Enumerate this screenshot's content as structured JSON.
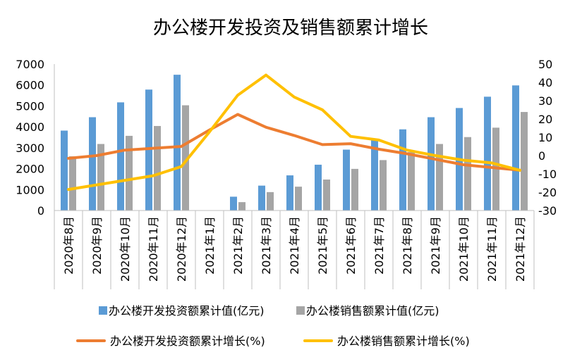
{
  "chart_data": {
    "type": "bar",
    "title": "办公楼开发投资及销售额累计增长",
    "categories": [
      "2020年8月",
      "2020年9月",
      "2020年10月",
      "2020年11月",
      "2020年12月",
      "2021年1月",
      "2021年2月",
      "2021年3月",
      "2021年4月",
      "2021年5月",
      "2021年6月",
      "2021年7月",
      "2021年8月",
      "2021年9月",
      "2021年10月",
      "2021年11月",
      "2021年12月"
    ],
    "left_axis": {
      "ylim": [
        0,
        7000
      ],
      "ticks": [
        0,
        1000,
        2000,
        3000,
        4000,
        5000,
        6000,
        7000
      ]
    },
    "right_axis": {
      "ylim": [
        -30,
        50
      ],
      "ticks": [
        -30,
        -20,
        -10,
        0,
        10,
        20,
        30,
        40,
        50
      ]
    },
    "grid": false,
    "legend_position": "bottom",
    "series": [
      {
        "name": "办公楼开发投资额累计值(亿元)",
        "type": "bar",
        "axis": "left",
        "color": "#5B9BD5",
        "values": [
          3820,
          4460,
          5170,
          5780,
          6490,
          null,
          660,
          1190,
          1680,
          2190,
          2910,
          3380,
          3880,
          4460,
          4900,
          5440,
          5980
        ]
      },
      {
        "name": "办公楼销售额累计值(亿元)",
        "type": "bar",
        "axis": "left",
        "color": "#A5A5A5",
        "values": [
          2590,
          3180,
          3570,
          4040,
          5030,
          null,
          400,
          880,
          1140,
          1480,
          1990,
          2410,
          2790,
          3180,
          3510,
          3960,
          4710
        ]
      },
      {
        "name": "办公楼开发投资额累计增长(%)",
        "type": "line",
        "axis": "right",
        "color": "#ED7D31",
        "values": [
          -1.5,
          0,
          3,
          4,
          5,
          14,
          22.5,
          15.5,
          11,
          6,
          6.5,
          3.5,
          1,
          -2,
          -5,
          -6.5,
          -8
        ]
      },
      {
        "name": "办公楼销售额累计增长(%)",
        "type": "line",
        "axis": "right",
        "color": "#FFC000",
        "values": [
          -18.5,
          -16,
          -13.5,
          -11,
          -6,
          13,
          33,
          44,
          32,
          25,
          10.5,
          8.5,
          3,
          0,
          -2.5,
          -4,
          -8
        ]
      }
    ]
  }
}
